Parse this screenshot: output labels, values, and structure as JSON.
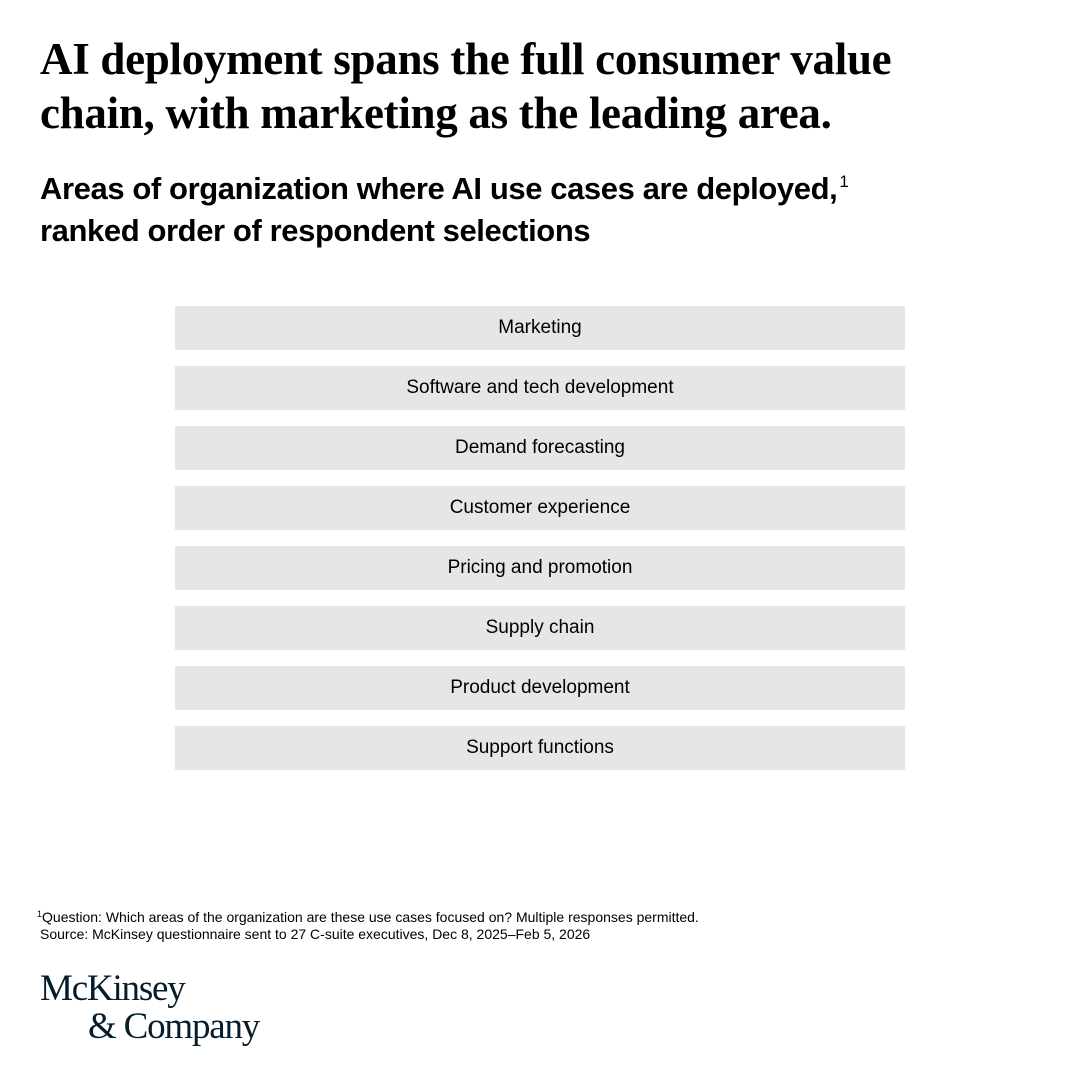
{
  "header": {
    "title": "AI deployment spans the full consumer value chain, with marketing as the leading area.",
    "subtitle": "Areas of organization where AI use cases are deployed,",
    "subtitle_footnote": "1",
    "subtitle_line2": "ranked order of respondent selections"
  },
  "items": [
    "Marketing",
    "Software and tech development",
    "Demand forecasting",
    "Customer experience",
    "Pricing and promotion",
    "Supply chain",
    "Product development",
    "Support functions"
  ],
  "footnote": {
    "marker": "1",
    "text": "Question: Which areas of the organization are these use cases focused on? Multiple responses permitted."
  },
  "source": "Source: McKinsey questionnaire sent to 27 C-suite executives, Dec 8, 2025–Feb 5, 2026",
  "logo": {
    "line1": "McKinsey",
    "line2": "& Company"
  }
}
